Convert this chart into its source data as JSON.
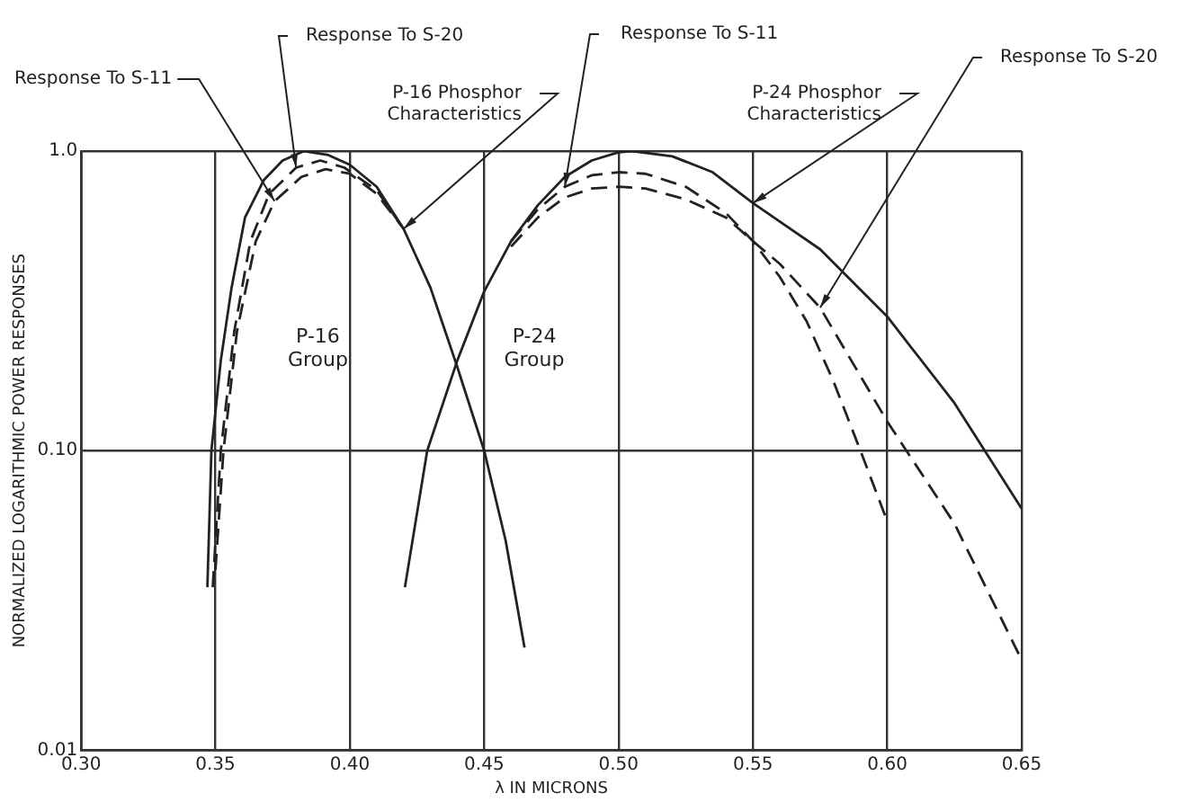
{
  "chart_data": {
    "type": "line",
    "xlabel": "λ IN MICRONS",
    "ylabel": "NORMALIZED LOGARITHMIC POWER RESPONSES",
    "log": "y",
    "xlim": [
      0.3,
      0.65
    ],
    "xticks": [
      {
        "value": 0.3,
        "label": "0.30"
      },
      {
        "value": 0.35,
        "label": "0.35"
      },
      {
        "value": 0.4,
        "label": "0.40"
      },
      {
        "value": 0.45,
        "label": "0.45"
      },
      {
        "value": 0.5,
        "label": "0.50"
      },
      {
        "value": 0.55,
        "label": "0.55"
      },
      {
        "value": 0.6,
        "label": "0.60"
      },
      {
        "value": 0.65,
        "label": "0.65"
      }
    ],
    "ylim": [
      0.01,
      1.0
    ],
    "yticks": [
      {
        "value": 0.01,
        "label": "0.01"
      },
      {
        "value": 0.1,
        "label": "0.10"
      },
      {
        "value": 1.0,
        "label": "1.0"
      }
    ],
    "grid": true,
    "legend": false,
    "marker": "none",
    "series": [
      {
        "name": "Response To S-11",
        "color": "#222222",
        "line_style": "dashed",
        "x": [
          0.35,
          0.353,
          0.358,
          0.365,
          0.372,
          0.382,
          0.391,
          0.4,
          0.41,
          0.42
        ],
        "values": [
          0.04,
          0.1,
          0.25,
          0.5,
          0.68,
          0.82,
          0.87,
          0.84,
          0.72,
          0.55
        ]
      },
      {
        "name": "Response To S-20",
        "color": "#222222",
        "line_style": "dashed",
        "x": [
          0.349,
          0.352,
          0.357,
          0.363,
          0.37,
          0.38,
          0.389,
          0.398,
          0.41,
          0.42
        ],
        "values": [
          0.035,
          0.1,
          0.25,
          0.5,
          0.72,
          0.88,
          0.93,
          0.88,
          0.74,
          0.55
        ]
      },
      {
        "name": "P-16 Phosphor Characteristics",
        "color": "#222222",
        "line_style": "solid",
        "x": [
          0.347,
          0.3485,
          0.352,
          0.356,
          0.361,
          0.368,
          0.375,
          0.383,
          0.392,
          0.4,
          0.41,
          0.42,
          0.43,
          0.44,
          0.45,
          0.458,
          0.465
        ],
        "values": [
          0.035,
          0.1,
          0.2,
          0.35,
          0.6,
          0.8,
          0.93,
          1.0,
          0.97,
          0.9,
          0.76,
          0.55,
          0.35,
          0.19,
          0.1,
          0.05,
          0.022
        ]
      },
      {
        "name": "Response To S-11",
        "color": "#222222",
        "line_style": "dashed",
        "x": [
          0.46,
          0.47,
          0.48,
          0.49,
          0.5,
          0.51,
          0.525,
          0.54,
          0.55,
          0.56,
          0.57,
          0.58,
          0.59,
          0.6
        ],
        "values": [
          0.5,
          0.64,
          0.76,
          0.83,
          0.85,
          0.84,
          0.76,
          0.62,
          0.5,
          0.38,
          0.27,
          0.17,
          0.1,
          0.058
        ]
      },
      {
        "name": "P-24 Phosphor Characteristics",
        "color": "#222222",
        "line_style": "solid",
        "x": [
          0.4205,
          0.4288,
          0.44,
          0.45,
          0.46,
          0.47,
          0.48,
          0.49,
          0.5,
          0.505,
          0.52,
          0.535,
          0.55,
          0.575,
          0.6,
          0.625,
          0.65
        ],
        "values": [
          0.035,
          0.1,
          0.2,
          0.34,
          0.5,
          0.66,
          0.82,
          0.93,
          0.99,
          1.0,
          0.96,
          0.85,
          0.67,
          0.47,
          0.28,
          0.144,
          0.064
        ]
      },
      {
        "name": "Response To S-20",
        "color": "#222222",
        "line_style": "dashed",
        "x": [
          0.46,
          0.47,
          0.48,
          0.49,
          0.5,
          0.51,
          0.525,
          0.54,
          0.55,
          0.56,
          0.575,
          0.6,
          0.625,
          0.65
        ],
        "values": [
          0.48,
          0.6,
          0.7,
          0.75,
          0.76,
          0.75,
          0.69,
          0.6,
          0.5,
          0.42,
          0.3,
          0.125,
          0.057,
          0.02
        ]
      }
    ],
    "annotations": [
      "P-16\nGroup",
      "P-24\nGroup"
    ]
  }
}
